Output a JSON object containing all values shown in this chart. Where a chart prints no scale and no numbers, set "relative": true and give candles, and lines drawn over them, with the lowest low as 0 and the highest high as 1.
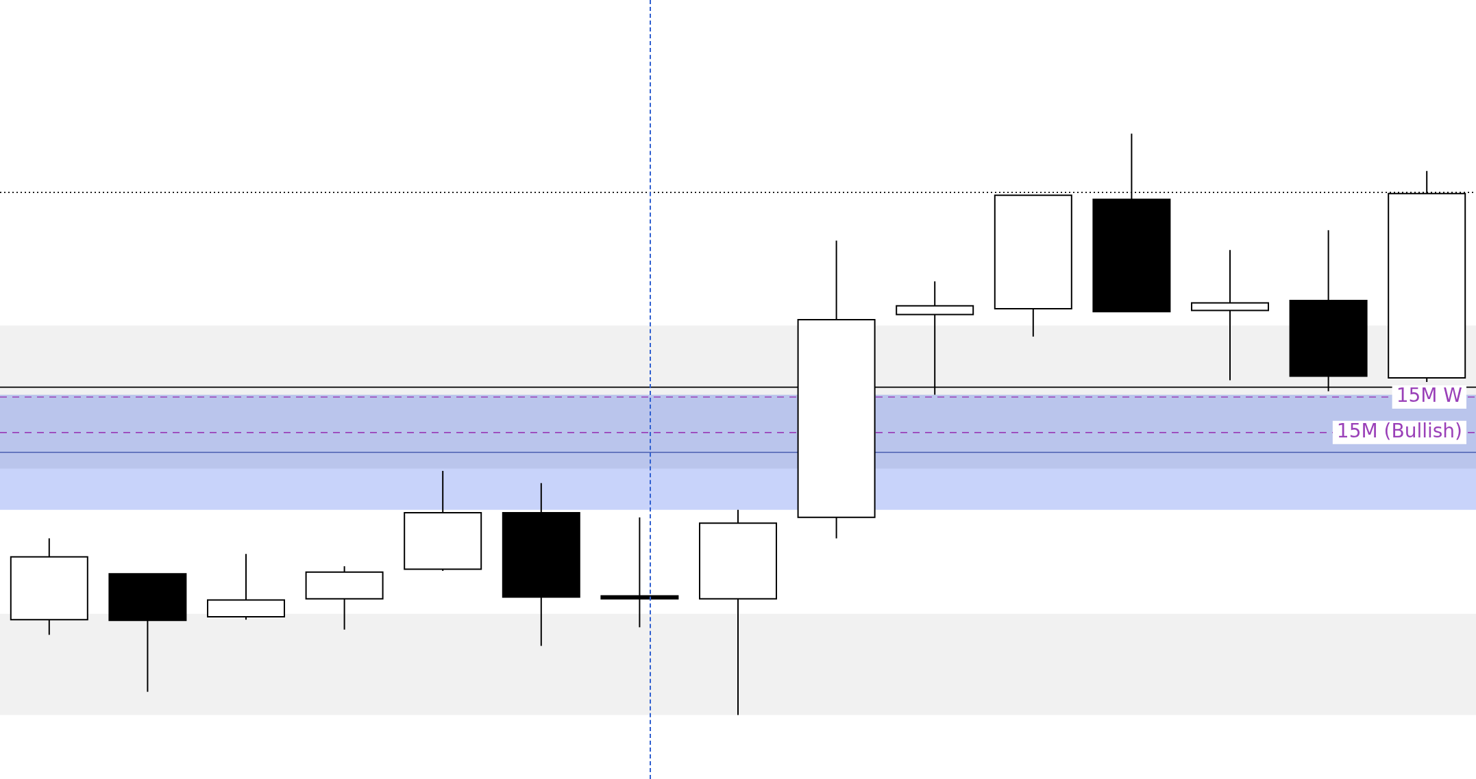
{
  "chart_data": {
    "type": "candlestick",
    "relative": true,
    "categories": [
      null,
      null,
      null,
      null,
      null,
      null,
      null,
      null,
      null,
      null,
      null,
      null,
      null,
      null,
      null
    ],
    "ohlc": [
      [
        0.164,
        0.304,
        0.138,
        0.272
      ],
      [
        0.243,
        0.243,
        0.04,
        0.163
      ],
      [
        0.169,
        0.277,
        0.164,
        0.198
      ],
      [
        0.2,
        0.256,
        0.147,
        0.246
      ],
      [
        0.251,
        0.42,
        0.248,
        0.348
      ],
      [
        0.348,
        0.399,
        0.119,
        0.203
      ],
      [
        0.205,
        0.34,
        0.151,
        0.2
      ],
      [
        0.2,
        0.353,
        0,
        0.33
      ],
      [
        0.34,
        0.816,
        0.304,
        0.68
      ],
      [
        0.689,
        0.746,
        0.551,
        0.704
      ],
      [
        0.699,
        0.894,
        0.651,
        0.894
      ],
      [
        0.887,
        1,
        0.694,
        0.694
      ],
      [
        0.696,
        0.8,
        0.576,
        0.709
      ],
      [
        0.713,
        0.834,
        0.557,
        0.583
      ],
      [
        0.58,
        0.936,
        0.573,
        0.897
      ]
    ],
    "bands": [
      {
        "axis": "y",
        "from": 0.424,
        "to": 0.67,
        "color": "#e6e6e6"
      },
      {
        "axis": "y",
        "from": 0.424,
        "to": 0.551,
        "color": "#d0d0d0"
      },
      {
        "axis": "y",
        "from": 0.353,
        "to": 0.551,
        "color": "#9aaef5"
      },
      {
        "axis": "y",
        "from": 0,
        "to": 0.174,
        "color": "#e6e6e6"
      }
    ],
    "ref_lines": [
      {
        "axis": "y",
        "value": 0.899,
        "color": "#000000",
        "line_style": "dotted"
      },
      {
        "axis": "y",
        "value": 0.564,
        "color": "#000000",
        "line_style": "solid"
      },
      {
        "axis": "y",
        "value": 0.547,
        "color": "#9a40b8",
        "line_style": "dashed",
        "label": "15M W"
      },
      {
        "axis": "y",
        "value": 0.486,
        "color": "#9a40b8",
        "line_style": "dashed",
        "label": "15M (Bullish)"
      },
      {
        "axis": "y",
        "value": 0.452,
        "color": "#4a5fb0",
        "line_style": "solid"
      }
    ]
  }
}
